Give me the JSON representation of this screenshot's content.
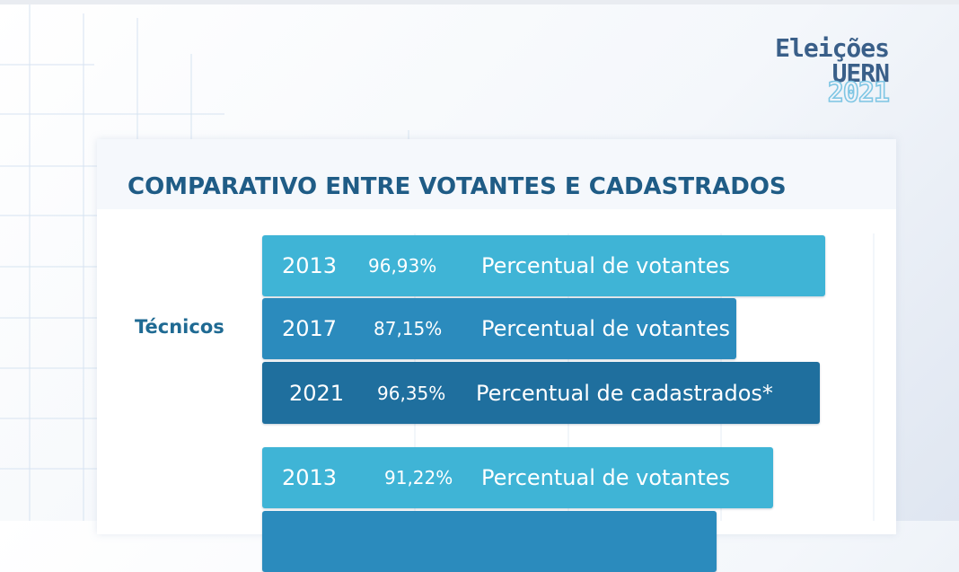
{
  "logo": {
    "line1": "Eleições",
    "line2": "UERN",
    "line3": "2021"
  },
  "chart_data": {
    "type": "bar",
    "title": "COMPARATIVO ENTRE VOTANTES E CADASTRADOS",
    "groups": [
      {
        "label": "Técnicos",
        "bars": [
          {
            "year": "2013",
            "percent_label": "96,93%",
            "value": 96.93,
            "description": "Percentual de votantes",
            "color": "#3fb4d6"
          },
          {
            "year": "2017",
            "percent_label": "87,15%",
            "value": 87.15,
            "description": "Percentual de votantes",
            "color": "#2b8bbd"
          },
          {
            "year": "2021",
            "percent_label": "96,35%",
            "value": 96.35,
            "description": "Percentual de cadastrados*",
            "color": "#1f6f9e"
          }
        ]
      },
      {
        "label": "",
        "bars": [
          {
            "year": "2013",
            "percent_label": "91,22%",
            "value": 91.22,
            "description": "Percentual de votantes",
            "color": "#3fb4d6"
          },
          {
            "year": "",
            "percent_label": "",
            "value": 85.0,
            "description": "",
            "color": "#2b8bbd"
          }
        ]
      }
    ],
    "xlim": [
      0,
      100
    ],
    "grid": true
  }
}
